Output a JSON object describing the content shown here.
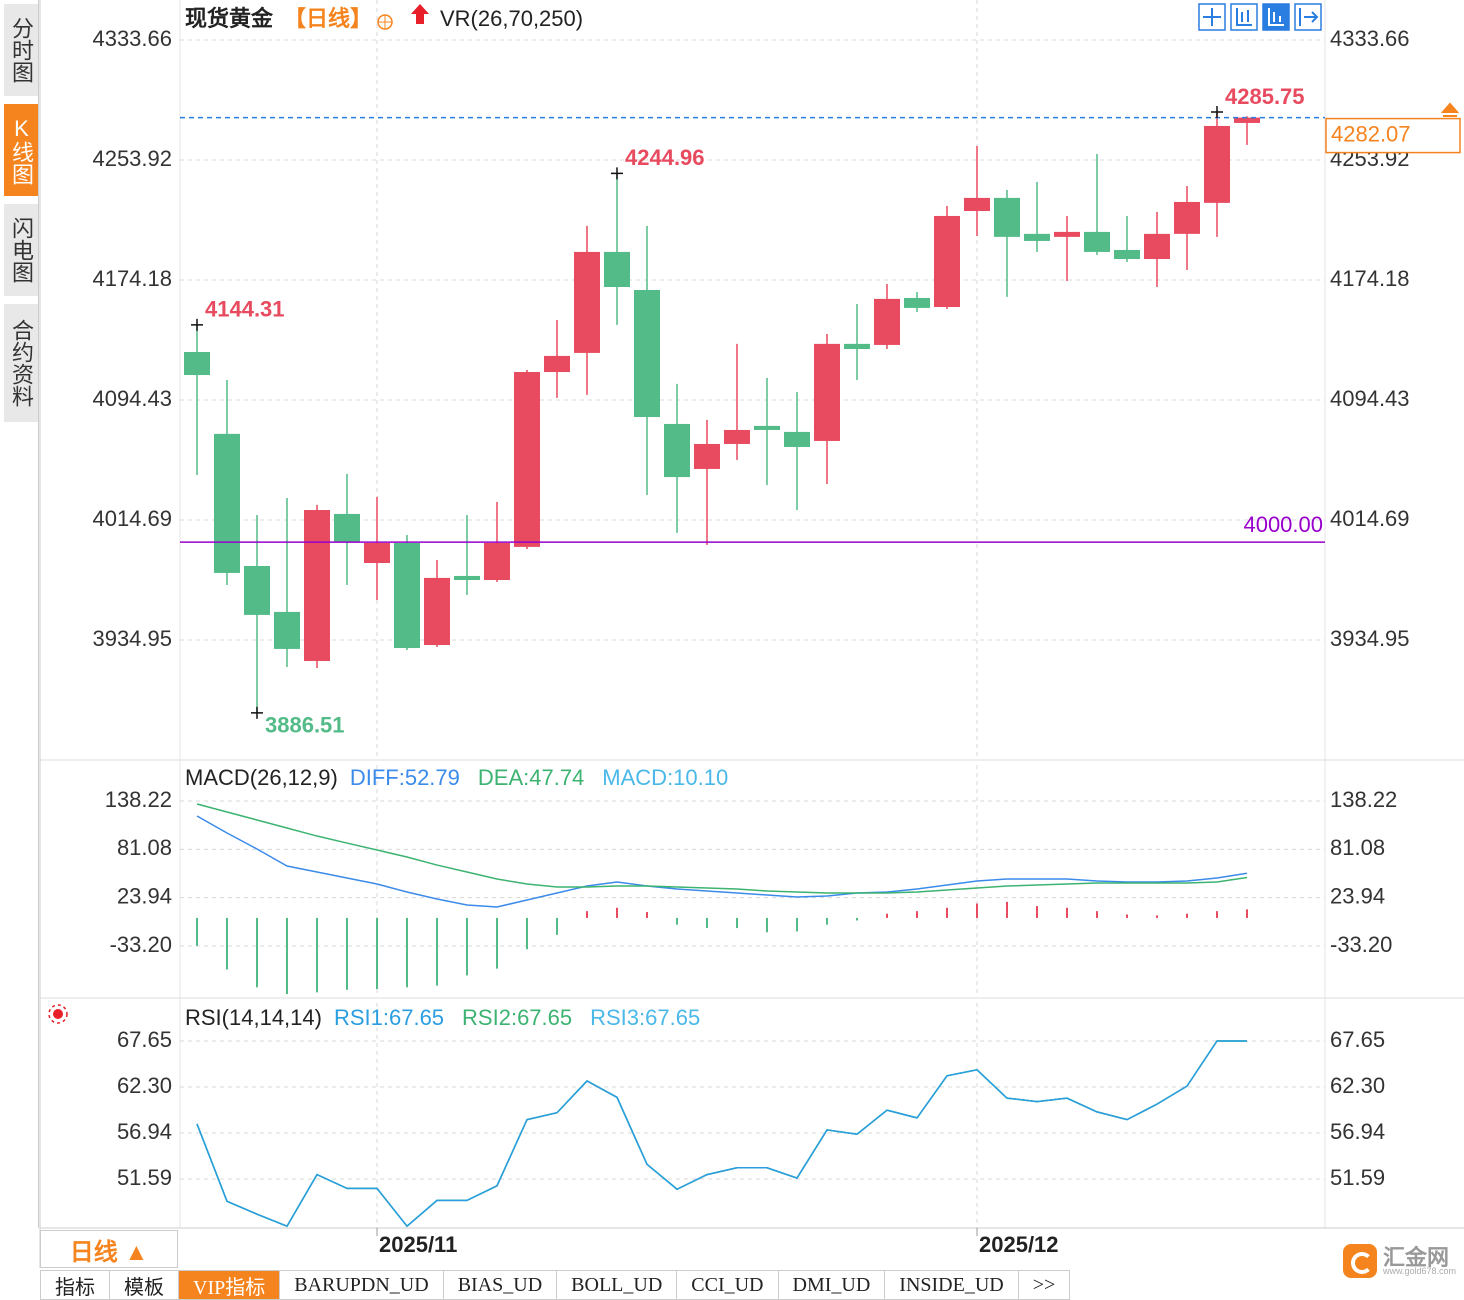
{
  "chart_data": [
    {
      "type": "candlestick",
      "title": "现货黄金",
      "period": "【日线】",
      "indicator": "VR(26,70,250)",
      "categories": [
        null,
        null,
        null,
        null,
        null,
        null,
        "2025/11",
        null,
        null,
        null,
        null,
        null,
        null,
        null,
        null,
        null,
        null,
        null,
        null,
        null,
        null,
        null,
        null,
        null,
        null,
        null,
        "2025/12",
        null,
        null,
        null,
        null,
        null,
        null,
        null,
        null,
        null
      ],
      "open": [
        4126.3,
        4071.9,
        3984.1,
        3953.6,
        3921.0,
        4018.7,
        3986.1,
        3999.4,
        3931.6,
        3977.5,
        3974.8,
        3996.8,
        4113.0,
        4125.7,
        4192.8,
        4167.5,
        4078.5,
        4048.6,
        4065.2,
        4077.2,
        4073.2,
        4067.2,
        4131.7,
        4131.0,
        4162.2,
        4156.2,
        4220.0,
        4228.7,
        4204.8,
        4202.8,
        4206.1,
        4194.1,
        4188.1,
        4204.8,
        4225.4,
        4278.5
      ],
      "high": [
        4144.31,
        4107.7,
        4018.0,
        4029.3,
        4024.7,
        4045.3,
        4030.0,
        4004.7,
        3988.1,
        4018.0,
        4026.7,
        4114.4,
        4147.6,
        4210.1,
        4244.96,
        4210.1,
        4105.1,
        4081.2,
        4131.7,
        4109.1,
        4099.8,
        4138.3,
        4158.2,
        4171.5,
        4166.2,
        4223.3,
        4263.2,
        4234.0,
        4239.3,
        4216.7,
        4257.9,
        4216.7,
        4219.4,
        4236.6,
        4285.75,
        4283.0
      ],
      "low": [
        4044.6,
        3971.5,
        3886.51,
        3917.0,
        3916.3,
        3971.5,
        3961.5,
        3928.3,
        3930.3,
        3964.9,
        3973.5,
        3995.4,
        4095.8,
        4097.8,
        4144.3,
        4031.3,
        4006.1,
        3998.1,
        4054.6,
        4037.9,
        4021.3,
        4038.6,
        4107.7,
        4128.3,
        4152.9,
        4154.9,
        4203.4,
        4162.9,
        4192.8,
        4173.5,
        4190.8,
        4186.1,
        4169.5,
        4180.8,
        4202.8,
        4263.9
      ],
      "close": [
        4111.0,
        3979.5,
        3951.6,
        3929.0,
        4021.3,
        4000.1,
        3999.4,
        3929.6,
        3976.2,
        3974.8,
        3999.4,
        4113.0,
        4123.7,
        4192.8,
        4169.5,
        4083.1,
        4043.2,
        4065.2,
        4074.5,
        4074.5,
        4063.2,
        4131.7,
        4128.3,
        4161.6,
        4155.6,
        4216.7,
        4228.7,
        4202.8,
        4200.1,
        4206.1,
        4192.8,
        4188.1,
        4204.8,
        4226.0,
        4276.5,
        4282.07
      ],
      "up_color": "#e84a5f",
      "down_color": "#52bb87",
      "ylim": [
        3855.2,
        4360.2
      ],
      "yticks": [
        4333.66,
        4253.92,
        4174.18,
        4094.43,
        4014.69,
        3934.95
      ],
      "hlines": [
        {
          "value": 4000,
          "label": "4000.00",
          "color": "#9900cc"
        }
      ],
      "last_price_color": "#2a7de1",
      "last_price_box_color": "#f5841f"
    },
    {
      "type": "macd",
      "title": "MACD(26,12,9)",
      "up_color": "#e84a5f",
      "down_color": "#52bb87",
      "ylim": [
        -93.49,
        180.78
      ],
      "yticks": [
        138.22,
        81.08,
        23.94,
        {
          "value": -33.2,
          "label": "-33.20"
        }
      ],
      "series": [
        {
          "name": "DIFF:52.79",
          "color": "#3b8beb",
          "values": [
            120.5,
            100.4,
            81.5,
            61.4,
            54.3,
            47.2,
            40.1,
            30.6,
            22.4,
            15.3,
            12.9,
            21.2,
            29.5,
            37.7,
            42.5,
            37.7,
            34.2,
            31.8,
            29.5,
            27.1,
            24.7,
            25.9,
            29.5,
            30.6,
            34.2,
            38.9,
            43.6,
            46.0,
            46.0,
            46.0,
            43.6,
            42.5,
            42.5,
            43.6,
            47.2,
            52.79
          ]
        },
        {
          "name": "DEA:47.74",
          "color": "#3cb371",
          "values": [
            134.7,
            125.2,
            115.8,
            106.3,
            96.8,
            88.5,
            80.3,
            72.0,
            62.5,
            54.3,
            46.0,
            40.1,
            36.5,
            36.5,
            37.7,
            37.7,
            36.5,
            35.3,
            34.2,
            31.8,
            30.6,
            29.5,
            29.5,
            29.5,
            30.6,
            33.0,
            35.3,
            37.7,
            38.9,
            40.1,
            41.3,
            41.3,
            41.3,
            41.3,
            42.5,
            47.74
          ]
        },
        {
          "name": "MACD:10.10",
          "color": "#4ab8e8",
          "bars": true,
          "values": [
            -33,
            -61,
            -82,
            -90,
            -88,
            -85,
            -84,
            -82,
            -80,
            -68,
            -60,
            -37,
            -20,
            8,
            12,
            7,
            -8,
            -12,
            -12,
            -17,
            -16,
            -8,
            -3,
            5,
            8,
            12,
            17,
            19,
            14,
            12,
            8,
            4,
            3,
            5,
            8,
            10.1
          ]
        }
      ]
    },
    {
      "type": "line",
      "title": "RSI(14,14,14)",
      "ylim": [
        45.89,
        72.07
      ],
      "yticks": [
        67.65,
        {
          "value": 62.3,
          "label": "62.30"
        },
        56.94,
        51.59
      ],
      "series": [
        {
          "name": "RSI1:67.65",
          "color": "#2a9ee0",
          "values": [
            58.0,
            49.0,
            47.5,
            46.1,
            52.1,
            50.5,
            50.5,
            46.1,
            49.1,
            49.1,
            50.8,
            58.5,
            59.3,
            63.0,
            61.1,
            53.3,
            50.4,
            52.1,
            52.9,
            52.9,
            51.7,
            57.3,
            56.8,
            59.6,
            58.7,
            63.6,
            64.3,
            61.0,
            60.6,
            61.0,
            59.4,
            58.5,
            60.3,
            62.4,
            67.65,
            67.65
          ]
        },
        {
          "name": "RSI2:67.65",
          "color": "#3cb371",
          "values": [
            58.0,
            49.0,
            47.5,
            46.1,
            52.1,
            50.5,
            50.5,
            46.1,
            49.1,
            49.1,
            50.8,
            58.5,
            59.3,
            63.0,
            61.1,
            53.3,
            50.4,
            52.1,
            52.9,
            52.9,
            51.7,
            57.3,
            56.8,
            59.6,
            58.7,
            63.6,
            64.3,
            61.0,
            60.6,
            61.0,
            59.4,
            58.5,
            60.3,
            62.4,
            67.65,
            67.65
          ]
        },
        {
          "name": "RSI3:67.65",
          "color": "#4ab8e8",
          "values": [
            58.0,
            49.0,
            47.5,
            46.1,
            52.1,
            50.5,
            50.5,
            46.1,
            49.1,
            49.1,
            50.8,
            58.5,
            59.3,
            63.0,
            61.1,
            53.3,
            50.4,
            52.1,
            52.9,
            52.9,
            51.7,
            57.3,
            56.8,
            59.6,
            58.7,
            63.6,
            64.3,
            61.0,
            60.6,
            61.0,
            59.4,
            58.5,
            60.3,
            62.4,
            67.65,
            67.65
          ]
        }
      ]
    }
  ],
  "ui": {
    "sidebar_tabs": [
      "分时图",
      "K线图",
      "闪电图",
      "合约资料"
    ],
    "sidebar_active": 1,
    "period_button": "日线 ▲",
    "bottom_tabs": [
      "指标",
      "模板",
      "VIP指标",
      "BARUPDN_UD",
      "BIAS_UD",
      "BOLL_UD",
      "CCI_UD",
      "DMI_UD",
      "INSIDE_UD",
      ">>"
    ],
    "bottom_active": 2,
    "logo": "汇金网",
    "logo_url": "www.gold678.com"
  }
}
